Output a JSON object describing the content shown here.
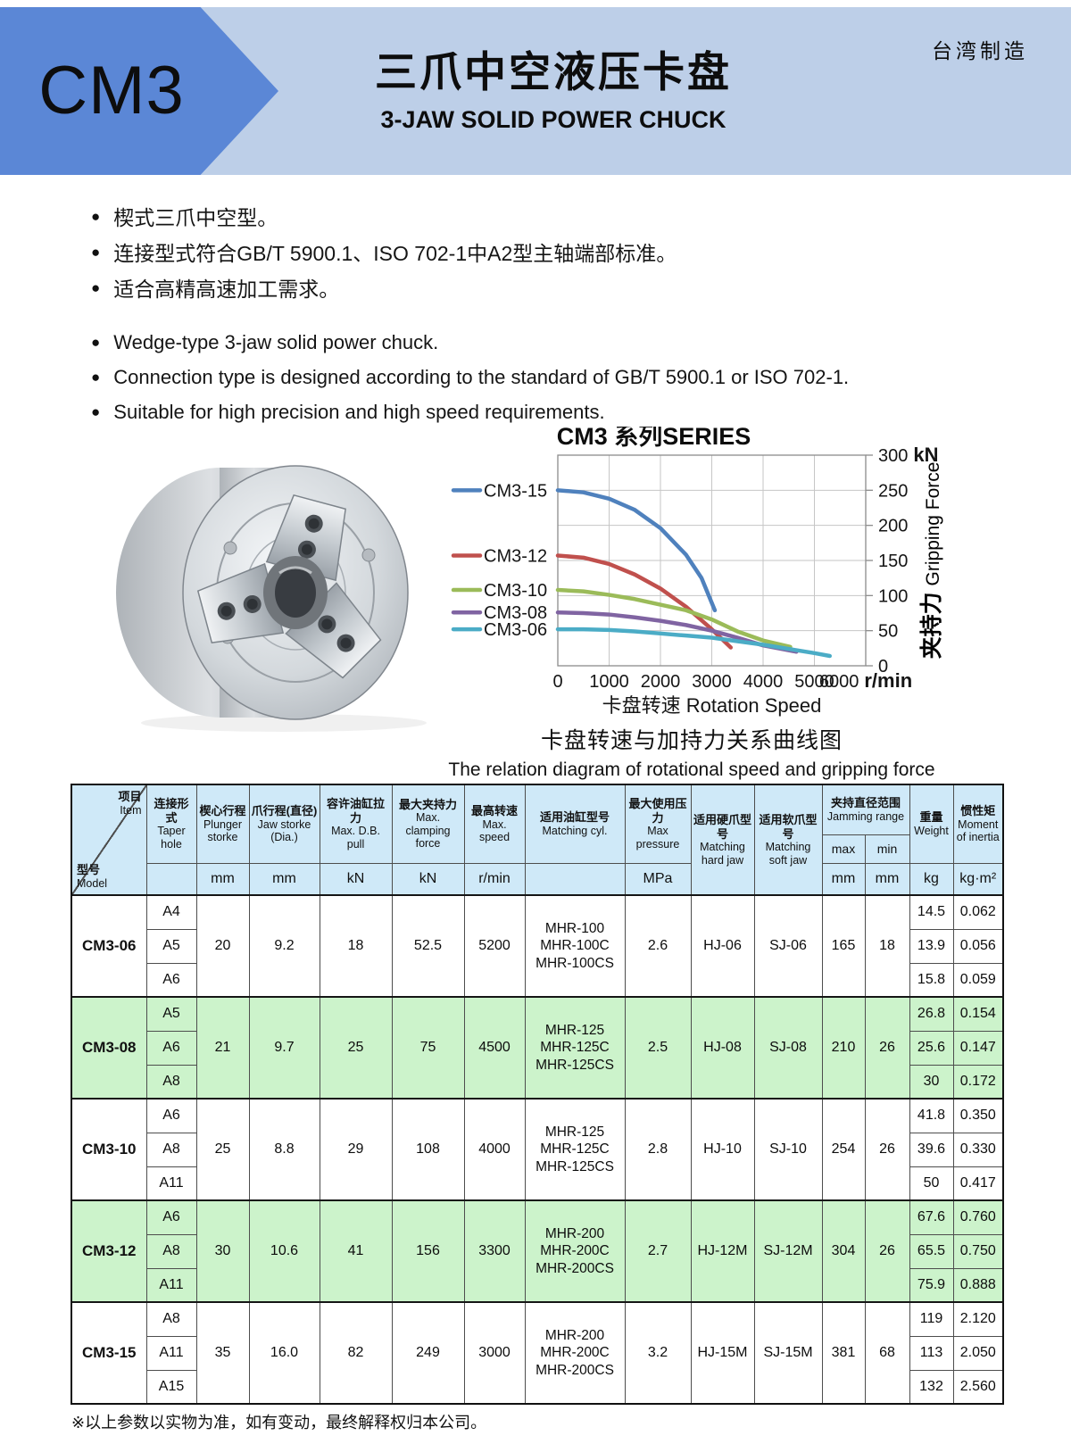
{
  "header": {
    "model": "CM3",
    "title_zh": "三爪中空液压卡盘",
    "title_en": "3-JAW SOLID POWER CHUCK",
    "origin": "台湾制造"
  },
  "features_zh": [
    "楔式三爪中空型。",
    "连接型式符合GB/T 5900.1、ISO 702-1中A2型主轴端部标准。",
    "适合高精高速加工需求。"
  ],
  "features_en": [
    "Wedge-type 3-jaw solid power chuck.",
    "Connection type is designed according to the standard of GB/T 5900.1 or ISO 702-1.",
    "Suitable for high precision and high speed requirements."
  ],
  "chart": {
    "caption_zh": "卡盘转速与加持力关系曲线图",
    "caption_en": "The relation diagram of rotational speed and gripping force"
  },
  "chart_data": {
    "type": "line",
    "title": "CM3 系列SERIES",
    "xlabel": "卡盘转速 Rotation Speed",
    "ylabel_zh": "夹持力",
    "ylabel_en": "Gripping Force",
    "x_unit": "r/min",
    "y_unit": "kN",
    "xlim": [
      0,
      6000
    ],
    "ylim": [
      0,
      300
    ],
    "x_ticks": [
      0,
      1000,
      2000,
      3000,
      4000,
      5000,
      6000
    ],
    "y_ticks": [
      0,
      50,
      100,
      150,
      200,
      250,
      300
    ],
    "grid": true,
    "legend_position": "left",
    "series": [
      {
        "name": "CM3-15",
        "color": "#4F81BD",
        "points": [
          [
            0,
            250
          ],
          [
            500,
            247
          ],
          [
            1000,
            238
          ],
          [
            1500,
            222
          ],
          [
            2000,
            196
          ],
          [
            2500,
            158
          ],
          [
            2800,
            125
          ],
          [
            3060,
            79
          ]
        ]
      },
      {
        "name": "CM3-12",
        "color": "#C0504D",
        "points": [
          [
            0,
            157
          ],
          [
            500,
            154
          ],
          [
            1000,
            145
          ],
          [
            1500,
            130
          ],
          [
            2000,
            110
          ],
          [
            2500,
            84
          ],
          [
            3000,
            52
          ],
          [
            3370,
            26
          ]
        ]
      },
      {
        "name": "CM3-10",
        "color": "#9BBB59",
        "points": [
          [
            0,
            108
          ],
          [
            500,
            106
          ],
          [
            1000,
            101
          ],
          [
            1500,
            95
          ],
          [
            2000,
            87
          ],
          [
            2500,
            79
          ],
          [
            3000,
            66
          ],
          [
            3500,
            49
          ],
          [
            4000,
            36
          ],
          [
            4530,
            27
          ]
        ]
      },
      {
        "name": "CM3-08",
        "color": "#8064A2",
        "points": [
          [
            0,
            76
          ],
          [
            500,
            75
          ],
          [
            1000,
            73
          ],
          [
            1500,
            69
          ],
          [
            2000,
            64
          ],
          [
            2500,
            58
          ],
          [
            3000,
            50
          ],
          [
            3500,
            40
          ],
          [
            4000,
            29
          ],
          [
            4650,
            20
          ]
        ]
      },
      {
        "name": "CM3-06",
        "color": "#4BACC6",
        "points": [
          [
            0,
            52
          ],
          [
            500,
            52
          ],
          [
            1000,
            51
          ],
          [
            1500,
            49
          ],
          [
            2000,
            46
          ],
          [
            2500,
            43
          ],
          [
            3000,
            40
          ],
          [
            3500,
            35
          ],
          [
            4000,
            30
          ],
          [
            4500,
            24
          ],
          [
            5000,
            18
          ],
          [
            5300,
            14
          ]
        ]
      }
    ]
  },
  "table": {
    "corner": {
      "item_zh": "项目",
      "item_en": "Item",
      "model_zh": "型号",
      "model_en": "Model"
    },
    "headers": {
      "taper": {
        "zh": "连接形式",
        "en": "Taper hole",
        "unit": ""
      },
      "plunger": {
        "zh": "楔心行程",
        "en": "Plunger storke",
        "unit": "mm"
      },
      "jaw": {
        "zh": "爪行程(直径)",
        "en": "Jaw storke (Dia.)",
        "unit": "mm"
      },
      "db": {
        "zh": "容许油缸拉力",
        "en": "Max. D.B. pull",
        "unit": "kN"
      },
      "clamp": {
        "zh": "最大夹持力",
        "en": "Max. clamping force",
        "unit": "kN"
      },
      "speed": {
        "zh": "最高转速",
        "en": "Max. speed",
        "unit": "r/min"
      },
      "cyl": {
        "zh": "适用油缸型号",
        "en": "Matching cyl.",
        "unit": ""
      },
      "pressure": {
        "zh": "最大使用压力",
        "en": "Max pressure",
        "unit": "MPa"
      },
      "hard": {
        "zh": "适用硬爪型号",
        "en": "Matching hard jaw"
      },
      "soft": {
        "zh": "适用软爪型号",
        "en": "Matching soft jaw"
      },
      "jamming": {
        "zh": "夹持直径范围",
        "en": "Jamming range",
        "sub": [
          "max",
          "min"
        ],
        "units": [
          "mm",
          "mm"
        ]
      },
      "weight": {
        "zh": "重量",
        "en": "Weight",
        "unit": "kg"
      },
      "moment": {
        "zh": "惯性矩",
        "en": "Moment of inertia",
        "unit": "kg·m²"
      }
    },
    "groups": [
      {
        "model": "CM3-06",
        "highlight": false,
        "shared": {
          "plunger": "20",
          "jaw": "9.2",
          "db": "18",
          "clamp": "52.5",
          "speed": "5200",
          "cyl": [
            "MHR-100",
            "MHR-100C",
            "MHR-100CS"
          ],
          "pressure": "2.6",
          "hard": "HJ-06",
          "soft": "SJ-06",
          "max": "165",
          "min": "18"
        },
        "rows": [
          {
            "taper": "A4",
            "weight": "14.5",
            "moment": "0.062"
          },
          {
            "taper": "A5",
            "weight": "13.9",
            "moment": "0.056"
          },
          {
            "taper": "A6",
            "weight": "15.8",
            "moment": "0.059"
          }
        ]
      },
      {
        "model": "CM3-08",
        "highlight": true,
        "shared": {
          "plunger": "21",
          "jaw": "9.7",
          "db": "25",
          "clamp": "75",
          "speed": "4500",
          "cyl": [
            "MHR-125",
            "MHR-125C",
            "MHR-125CS"
          ],
          "pressure": "2.5",
          "hard": "HJ-08",
          "soft": "SJ-08",
          "max": "210",
          "min": "26"
        },
        "rows": [
          {
            "taper": "A5",
            "weight": "26.8",
            "moment": "0.154"
          },
          {
            "taper": "A6",
            "weight": "25.6",
            "moment": "0.147"
          },
          {
            "taper": "A8",
            "weight": "30",
            "moment": "0.172"
          }
        ]
      },
      {
        "model": "CM3-10",
        "highlight": false,
        "shared": {
          "plunger": "25",
          "jaw": "8.8",
          "db": "29",
          "clamp": "108",
          "speed": "4000",
          "cyl": [
            "MHR-125",
            "MHR-125C",
            "MHR-125CS"
          ],
          "pressure": "2.8",
          "hard": "HJ-10",
          "soft": "SJ-10",
          "max": "254",
          "min": "26"
        },
        "rows": [
          {
            "taper": "A6",
            "weight": "41.8",
            "moment": "0.350"
          },
          {
            "taper": "A8",
            "weight": "39.6",
            "moment": "0.330"
          },
          {
            "taper": "A11",
            "weight": "50",
            "moment": "0.417"
          }
        ]
      },
      {
        "model": "CM3-12",
        "highlight": true,
        "shared": {
          "plunger": "30",
          "jaw": "10.6",
          "db": "41",
          "clamp": "156",
          "speed": "3300",
          "cyl": [
            "MHR-200",
            "MHR-200C",
            "MHR-200CS"
          ],
          "pressure": "2.7",
          "hard": "HJ-12M",
          "soft": "SJ-12M",
          "max": "304",
          "min": "26"
        },
        "rows": [
          {
            "taper": "A6",
            "weight": "67.6",
            "moment": "0.760"
          },
          {
            "taper": "A8",
            "weight": "65.5",
            "moment": "0.750"
          },
          {
            "taper": "A11",
            "weight": "75.9",
            "moment": "0.888"
          }
        ]
      },
      {
        "model": "CM3-15",
        "highlight": false,
        "shared": {
          "plunger": "35",
          "jaw": "16.0",
          "db": "82",
          "clamp": "249",
          "speed": "3000",
          "cyl": [
            "MHR-200",
            "MHR-200C",
            "MHR-200CS"
          ],
          "pressure": "3.2",
          "hard": "HJ-15M",
          "soft": "SJ-15M",
          "max": "381",
          "min": "68"
        },
        "rows": [
          {
            "taper": "A8",
            "weight": "119",
            "moment": "2.120"
          },
          {
            "taper": "A11",
            "weight": "113",
            "moment": "2.050"
          },
          {
            "taper": "A15",
            "weight": "132",
            "moment": "2.560"
          }
        ]
      }
    ]
  },
  "footnote": "※以上参数以实物为准，如有变动，最终解释权归本公司。"
}
